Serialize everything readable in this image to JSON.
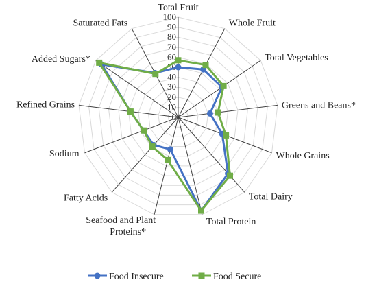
{
  "chart_data": {
    "type": "radar",
    "title": "",
    "axes": [
      "Total Fruit",
      "Whole Fruit",
      "Total Vegetables",
      "Greens and Beans*",
      "Whole Grains",
      "Total Dairy",
      "Total Protein",
      "Seafood and Plant Proteins*",
      "Fatty Acids",
      "Sodium",
      "Refined Grains",
      "Added Sugars*",
      "Saturated Fats"
    ],
    "r_range": [
      0,
      100
    ],
    "r_ticks": [
      0,
      10,
      20,
      30,
      40,
      50,
      60,
      70,
      80,
      90,
      100
    ],
    "grid": true,
    "legend_position": "bottom",
    "series": [
      {
        "name": "Food Insecure",
        "color": "#4472C4",
        "marker": "circle",
        "values": [
          50,
          54,
          53,
          32,
          47,
          75,
          96,
          33,
          37,
          37,
          48,
          93,
          50
        ]
      },
      {
        "name": "Food Secure",
        "color": "#70AD47",
        "marker": "square",
        "values": [
          57,
          59,
          55,
          40,
          51,
          78,
          96,
          44,
          39,
          37,
          48,
          96,
          49
        ]
      }
    ]
  }
}
